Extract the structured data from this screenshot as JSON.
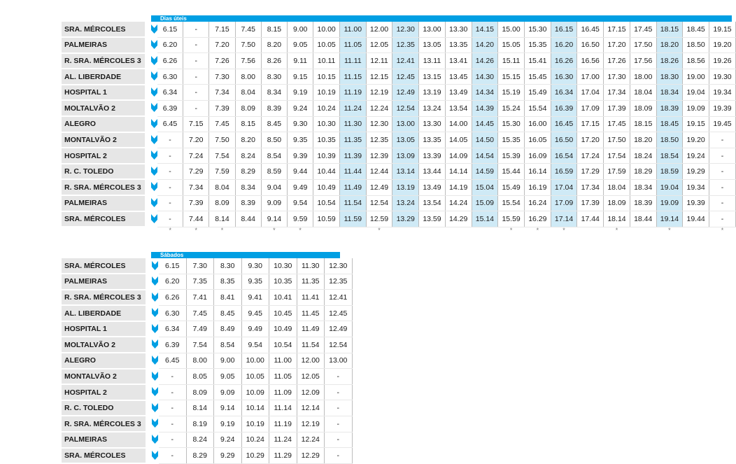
{
  "weekday": {
    "title": "Dias úteis",
    "highlight_cols": [
      7,
      9,
      12,
      15,
      19
    ],
    "dot_cols": [
      0,
      1,
      2,
      4,
      5,
      8,
      13,
      14,
      15,
      17,
      19,
      21,
      22
    ],
    "dot_char": "*",
    "stops": [
      {
        "name": "SRA. MÉRCOLES",
        "times": [
          "6.15",
          "-",
          "7.15",
          "7.45",
          "8.15",
          "9.00",
          "10.00",
          "11.00",
          "12.00",
          "12.30",
          "13.00",
          "13.30",
          "14.15",
          "15.00",
          "15.30",
          "16.15",
          "16.45",
          "17.15",
          "17.45",
          "18.15",
          "18.45",
          "19.15"
        ]
      },
      {
        "name": "PALMEIRAS",
        "times": [
          "6.20",
          "-",
          "7.20",
          "7.50",
          "8.20",
          "9.05",
          "10.05",
          "11.05",
          "12.05",
          "12.35",
          "13.05",
          "13.35",
          "14.20",
          "15.05",
          "15.35",
          "16.20",
          "16.50",
          "17.20",
          "17.50",
          "18.20",
          "18.50",
          "19.20"
        ]
      },
      {
        "name": "R. SRA. MÉRCOLES 3",
        "times": [
          "6.26",
          "-",
          "7.26",
          "7.56",
          "8.26",
          "9.11",
          "10.11",
          "11.11",
          "12.11",
          "12.41",
          "13.11",
          "13.41",
          "14.26",
          "15.11",
          "15.41",
          "16.26",
          "16.56",
          "17.26",
          "17.56",
          "18.26",
          "18.56",
          "19.26"
        ]
      },
      {
        "name": "AL. LIBERDADE",
        "times": [
          "6.30",
          "-",
          "7.30",
          "8.00",
          "8.30",
          "9.15",
          "10.15",
          "11.15",
          "12.15",
          "12.45",
          "13.15",
          "13.45",
          "14.30",
          "15.15",
          "15.45",
          "16.30",
          "17.00",
          "17.30",
          "18.00",
          "18.30",
          "19.00",
          "19.30"
        ]
      },
      {
        "name": "HOSPITAL 1",
        "times": [
          "6.34",
          "-",
          "7.34",
          "8.04",
          "8.34",
          "9.19",
          "10.19",
          "11.19",
          "12.19",
          "12.49",
          "13.19",
          "13.49",
          "14.34",
          "15.19",
          "15.49",
          "16.34",
          "17.04",
          "17.34",
          "18.04",
          "18.34",
          "19.04",
          "19.34"
        ]
      },
      {
        "name": "MOLTALVÃO 2",
        "times": [
          "6.39",
          "-",
          "7.39",
          "8.09",
          "8.39",
          "9.24",
          "10.24",
          "11.24",
          "12.24",
          "12.54",
          "13.24",
          "13.54",
          "14.39",
          "15.24",
          "15.54",
          "16.39",
          "17.09",
          "17.39",
          "18.09",
          "18.39",
          "19.09",
          "19.39"
        ]
      },
      {
        "name": "ALEGRO",
        "times": [
          "6.45",
          "7.15",
          "7.45",
          "8.15",
          "8.45",
          "9.30",
          "10.30",
          "11.30",
          "12.30",
          "13.00",
          "13.30",
          "14.00",
          "14.45",
          "15.30",
          "16.00",
          "16.45",
          "17.15",
          "17.45",
          "18.15",
          "18.45",
          "19.15",
          "19.45"
        ]
      },
      {
        "name": "MONTALVÃO 2",
        "times": [
          "-",
          "7.20",
          "7.50",
          "8.20",
          "8.50",
          "9.35",
          "10.35",
          "11.35",
          "12.35",
          "13.05",
          "13.35",
          "14.05",
          "14.50",
          "15.35",
          "16.05",
          "16.50",
          "17.20",
          "17.50",
          "18.20",
          "18.50",
          "19.20",
          "-"
        ]
      },
      {
        "name": "HOSPITAL 2",
        "times": [
          "-",
          "7.24",
          "7.54",
          "8.24",
          "8.54",
          "9.39",
          "10.39",
          "11.39",
          "12.39",
          "13.09",
          "13.39",
          "14.09",
          "14.54",
          "15.39",
          "16.09",
          "16.54",
          "17.24",
          "17.54",
          "18.24",
          "18.54",
          "19.24",
          "-"
        ]
      },
      {
        "name": "R. C. TOLEDO",
        "times": [
          "-",
          "7.29",
          "7.59",
          "8.29",
          "8.59",
          "9.44",
          "10.44",
          "11.44",
          "12.44",
          "13.14",
          "13.44",
          "14.14",
          "14.59",
          "15.44",
          "16.14",
          "16.59",
          "17.29",
          "17.59",
          "18.29",
          "18.59",
          "19.29",
          "-"
        ]
      },
      {
        "name": "R. SRA. MÉRCOLES 3",
        "times": [
          "-",
          "7.34",
          "8.04",
          "8.34",
          "9.04",
          "9.49",
          "10.49",
          "11.49",
          "12.49",
          "13.19",
          "13.49",
          "14.19",
          "15.04",
          "15.49",
          "16.19",
          "17.04",
          "17.34",
          "18.04",
          "18.34",
          "19.04",
          "19.34",
          "-"
        ]
      },
      {
        "name": "PALMEIRAS",
        "times": [
          "-",
          "7.39",
          "8.09",
          "8.39",
          "9.09",
          "9.54",
          "10.54",
          "11.54",
          "12.54",
          "13.24",
          "13.54",
          "14.24",
          "15.09",
          "15.54",
          "16.24",
          "17.09",
          "17.39",
          "18.09",
          "18.39",
          "19.09",
          "19.39",
          "-"
        ]
      },
      {
        "name": "SRA. MÉRCOLES",
        "times": [
          "-",
          "7.44",
          "8.14",
          "8.44",
          "9.14",
          "9.59",
          "10.59",
          "11.59",
          "12.59",
          "13.29",
          "13.59",
          "14.29",
          "15.14",
          "15.59",
          "16.29",
          "17.14",
          "17.44",
          "18.14",
          "18.44",
          "19.14",
          "19.44",
          "-"
        ]
      }
    ]
  },
  "saturday": {
    "title": "Sábados",
    "stops": [
      {
        "name": "SRA. MÉRCOLES",
        "times": [
          "6.15",
          "7.30",
          "8.30",
          "9.30",
          "10.30",
          "11.30",
          "12.30"
        ]
      },
      {
        "name": "PALMEIRAS",
        "times": [
          "6.20",
          "7.35",
          "8.35",
          "9.35",
          "10.35",
          "11.35",
          "12.35"
        ]
      },
      {
        "name": "R. SRA. MÉRCOLES 3",
        "times": [
          "6.26",
          "7.41",
          "8.41",
          "9.41",
          "10.41",
          "11.41",
          "12.41"
        ]
      },
      {
        "name": "AL. LIBERDADE",
        "times": [
          "6.30",
          "7.45",
          "8.45",
          "9.45",
          "10.45",
          "11.45",
          "12.45"
        ]
      },
      {
        "name": "HOSPITAL 1",
        "times": [
          "6.34",
          "7.49",
          "8.49",
          "9.49",
          "10.49",
          "11.49",
          "12.49"
        ]
      },
      {
        "name": "MOLTALVÃO 2",
        "times": [
          "6.39",
          "7.54",
          "8.54",
          "9.54",
          "10.54",
          "11.54",
          "12.54"
        ]
      },
      {
        "name": "ALEGRO",
        "times": [
          "6.45",
          "8.00",
          "9.00",
          "10.00",
          "11.00",
          "12.00",
          "13.00"
        ]
      },
      {
        "name": "MONTALVÃO 2",
        "times": [
          "-",
          "8.05",
          "9.05",
          "10.05",
          "11.05",
          "12.05",
          "-"
        ]
      },
      {
        "name": "HOSPITAL 2",
        "times": [
          "-",
          "8.09",
          "9.09",
          "10.09",
          "11.09",
          "12.09",
          "-"
        ]
      },
      {
        "name": "R. C. TOLEDO",
        "times": [
          "-",
          "8.14",
          "9.14",
          "10.14",
          "11.14",
          "12.14",
          "-"
        ]
      },
      {
        "name": "R. SRA. MÉRCOLES 3",
        "times": [
          "-",
          "8.19",
          "9.19",
          "10.19",
          "11.19",
          "12.19",
          "-"
        ]
      },
      {
        "name": "PALMEIRAS",
        "times": [
          "-",
          "8.24",
          "9.24",
          "10.24",
          "11.24",
          "12.24",
          "-"
        ]
      },
      {
        "name": "SRA. MÉRCOLES",
        "times": [
          "-",
          "8.29",
          "9.29",
          "10.29",
          "11.29",
          "12.29",
          "-"
        ]
      }
    ]
  },
  "colors": {
    "accent": "#009fe3",
    "highlight": "#cfeaf6",
    "stop_bg": "#e6e6e6"
  },
  "icons": {
    "stop_marker": "chevron-down-icon"
  }
}
